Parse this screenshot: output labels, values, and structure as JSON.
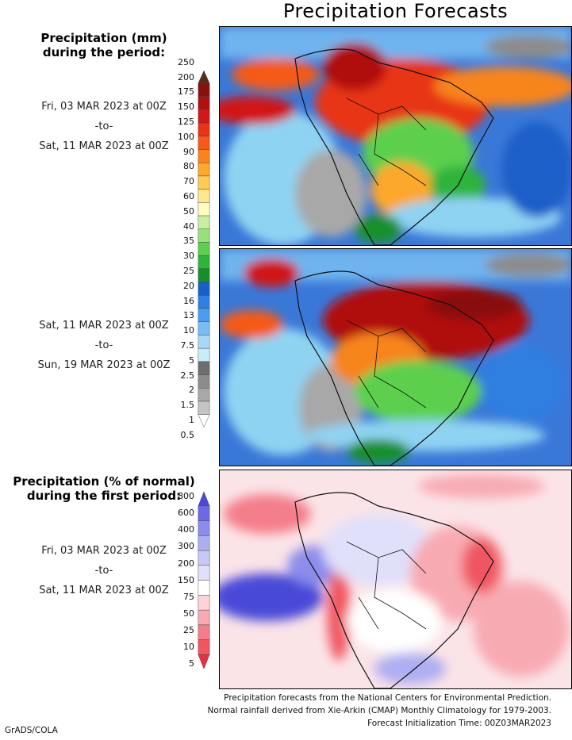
{
  "title": "Precipitation Forecasts",
  "panel1": {
    "heading": [
      "Precipitation (mm)",
      "during the period:"
    ],
    "period": [
      "Fri, 03 MAR 2023 at 00Z",
      "-to-",
      "Sat, 11 MAR 2023 at 00Z"
    ]
  },
  "panel2": {
    "period": [
      "Sat, 11 MAR 2023 at 00Z",
      "-to-",
      "Sun, 19 MAR 2023 at 00Z"
    ]
  },
  "panel3": {
    "heading": [
      "Precipitation (% of normal)",
      "during the first period:"
    ],
    "period": [
      "Fri, 03 MAR 2023 at 00Z",
      "-to-",
      "Sat, 11 MAR 2023 at 00Z"
    ]
  },
  "mm_scale": {
    "labels": [
      "250",
      "200",
      "175",
      "150",
      "125",
      "100",
      "90",
      "80",
      "70",
      "60",
      "50",
      "40",
      "35",
      "30",
      "25",
      "20",
      "16",
      "13",
      "10",
      "7.5",
      "5",
      "2.5",
      "2",
      "1.5",
      "1",
      "0.5"
    ],
    "colors": [
      "#5a2a1a",
      "#8a1010",
      "#b01010",
      "#d01818",
      "#e83418",
      "#f55a18",
      "#f8841c",
      "#fca82a",
      "#fdcc52",
      "#fde88c",
      "#fffcc0",
      "#c6f0a0",
      "#96e27a",
      "#5cd04e",
      "#2eb43a",
      "#14902a",
      "#1a5fc8",
      "#2f7fe0",
      "#4a9cf0",
      "#79bbf5",
      "#a8d8f8",
      "#c8ecf8",
      "#6e6e6e",
      "#8c8c8c",
      "#a8a8a8",
      "#c4c4c4",
      "#ffffff"
    ]
  },
  "pct_scale": {
    "labels": [
      "800",
      "600",
      "400",
      "300",
      "200",
      "150",
      "75",
      "50",
      "25",
      "10",
      "5"
    ],
    "colors": [
      "#4a4ad8",
      "#6a6ae4",
      "#8c8cec",
      "#aeaef2",
      "#c8c8f6",
      "#e0e0fa",
      "#ffffff",
      "#fcd4d8",
      "#f8aab2",
      "#f47e8a",
      "#f05662",
      "#e83040"
    ]
  },
  "footer": [
    "Precipitation forecasts from the National Centers for Environmental Prediction.",
    "Normal rainfall derived from Xie-Arkin (CMAP) Monthly Climatology for 1979-2003.",
    "Forecast Initialization Time: 00Z03MAR2023"
  ],
  "credit": "GrADS/COLA"
}
